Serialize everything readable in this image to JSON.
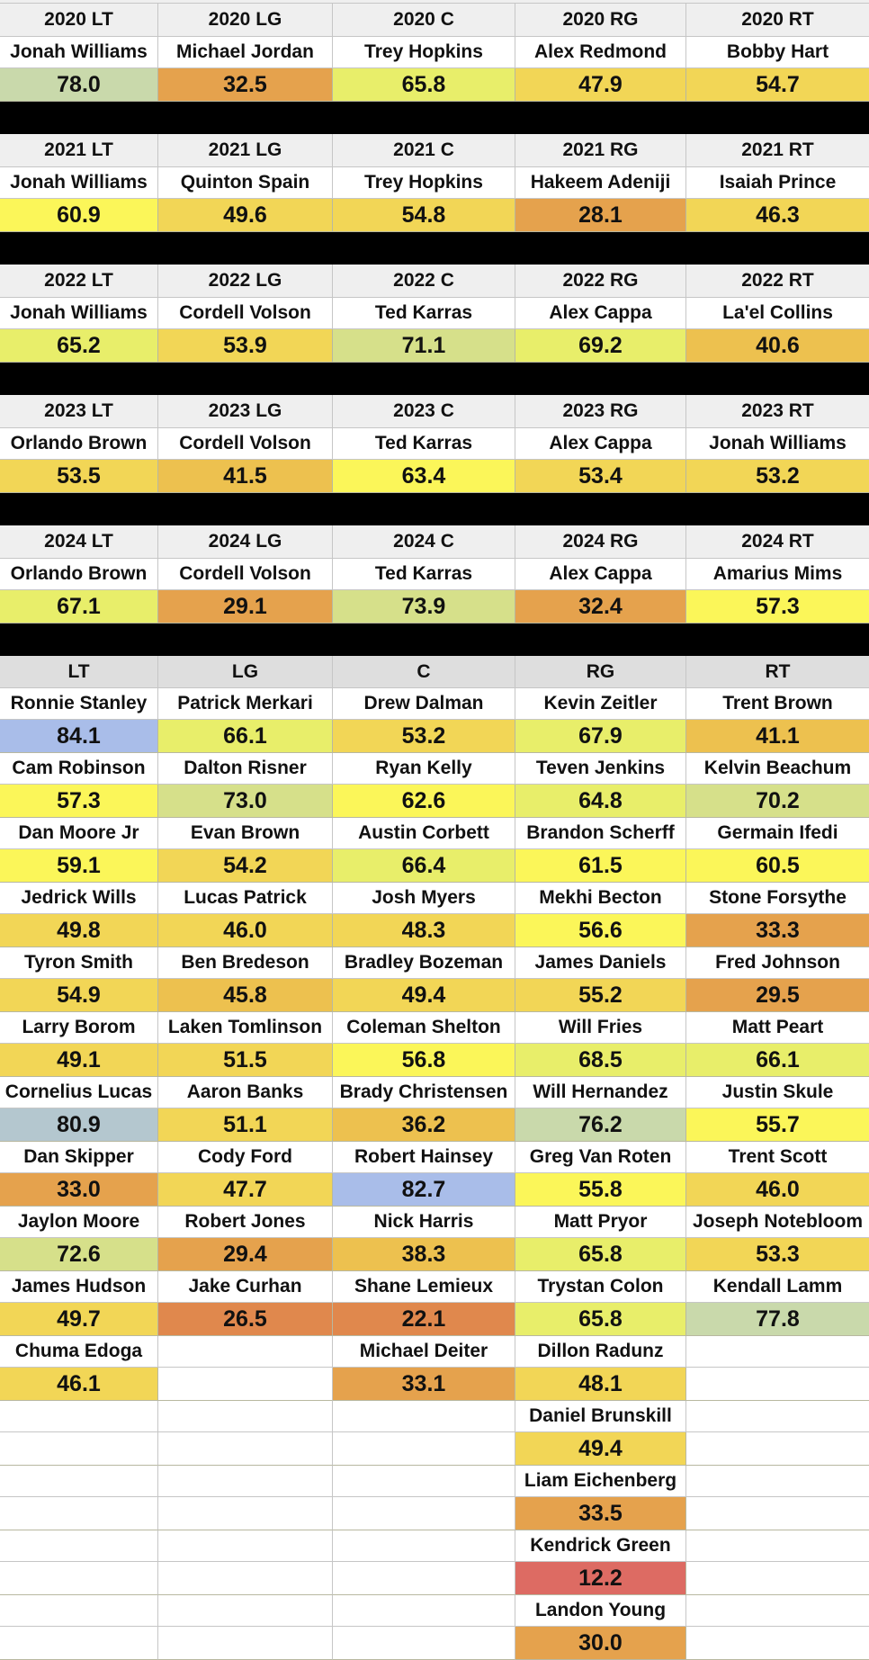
{
  "colors": {
    "blue": "#a9bde9",
    "steel": "#b4c7cf",
    "sage": "#c9d9ab",
    "pale_green": "#d6e08a",
    "lime": "#e8ee6a",
    "yellow": "#fbf659",
    "gold": "#f2d656",
    "amber": "#edc14f",
    "orange": "#e5a24d",
    "dark_orange": "#e0884d",
    "red": "#dd6b63",
    "header_bg": "#efefef",
    "position_header_bg": "#dedede",
    "separator": "#000000"
  },
  "seasons": [
    {
      "headers": [
        "2020 LT",
        "2020 LG",
        "2020 C",
        "2020 RG",
        "2020 RT"
      ],
      "players": [
        "Jonah Williams",
        "Michael Jordan",
        "Trey Hopkins",
        "Alex Redmond",
        "Bobby Hart"
      ],
      "grades": [
        "78.0",
        "32.5",
        "65.8",
        "47.9",
        "54.7"
      ],
      "tones": [
        "sage",
        "orange",
        "lime",
        "gold",
        "gold"
      ]
    },
    {
      "headers": [
        "2021 LT",
        "2021 LG",
        "2021 C",
        "2021 RG",
        "2021 RT"
      ],
      "players": [
        "Jonah Williams",
        "Quinton Spain",
        "Trey Hopkins",
        "Hakeem Adeniji",
        "Isaiah Prince"
      ],
      "grades": [
        "60.9",
        "49.6",
        "54.8",
        "28.1",
        "46.3"
      ],
      "tones": [
        "yellow",
        "gold",
        "gold",
        "orange",
        "gold"
      ]
    },
    {
      "headers": [
        "2022 LT",
        "2022 LG",
        "2022 C",
        "2022 RG",
        "2022 RT"
      ],
      "players": [
        "Jonah Williams",
        "Cordell Volson",
        "Ted Karras",
        "Alex Cappa",
        "La'el Collins"
      ],
      "grades": [
        "65.2",
        "53.9",
        "71.1",
        "69.2",
        "40.6"
      ],
      "tones": [
        "lime",
        "gold",
        "pale_green",
        "lime",
        "amber"
      ]
    },
    {
      "headers": [
        "2023 LT",
        "2023 LG",
        "2023 C",
        "2023 RG",
        "2023 RT"
      ],
      "players": [
        "Orlando Brown",
        "Cordell Volson",
        "Ted Karras",
        "Alex Cappa",
        "Jonah Williams"
      ],
      "grades": [
        "53.5",
        "41.5",
        "63.4",
        "53.4",
        "53.2"
      ],
      "tones": [
        "gold",
        "amber",
        "yellow",
        "gold",
        "gold"
      ]
    },
    {
      "headers": [
        "2024 LT",
        "2024 LG",
        "2024 C",
        "2024 RG",
        "2024 RT"
      ],
      "players": [
        "Orlando Brown",
        "Cordell Volson",
        "Ted Karras",
        "Alex Cappa",
        "Amarius Mims"
      ],
      "grades": [
        "67.1",
        "29.1",
        "73.9",
        "32.4",
        "57.3"
      ],
      "tones": [
        "lime",
        "orange",
        "pale_green",
        "orange",
        "yellow"
      ]
    }
  ],
  "positions": [
    "LT",
    "LG",
    "C",
    "RG",
    "RT"
  ],
  "roster_rows": [
    {
      "players": [
        "Ronnie Stanley",
        "Patrick Merkari",
        "Drew Dalman",
        "Kevin Zeitler",
        "Trent Brown"
      ],
      "grades": [
        "84.1",
        "66.1",
        "53.2",
        "67.9",
        "41.1"
      ],
      "tones": [
        "blue",
        "lime",
        "gold",
        "lime",
        "amber"
      ]
    },
    {
      "players": [
        "Cam Robinson",
        "Dalton Risner",
        "Ryan Kelly",
        "Teven Jenkins",
        "Kelvin Beachum"
      ],
      "grades": [
        "57.3",
        "73.0",
        "62.6",
        "64.8",
        "70.2"
      ],
      "tones": [
        "yellow",
        "pale_green",
        "yellow",
        "lime",
        "pale_green"
      ]
    },
    {
      "players": [
        "Dan Moore Jr",
        "Evan Brown",
        "Austin Corbett",
        "Brandon Scherff",
        "Germain Ifedi"
      ],
      "grades": [
        "59.1",
        "54.2",
        "66.4",
        "61.5",
        "60.5"
      ],
      "tones": [
        "yellow",
        "gold",
        "lime",
        "yellow",
        "yellow"
      ]
    },
    {
      "players": [
        "Jedrick Wills",
        "Lucas Patrick",
        "Josh Myers",
        "Mekhi Becton",
        "Stone Forsythe"
      ],
      "grades": [
        "49.8",
        "46.0",
        "48.3",
        "56.6",
        "33.3"
      ],
      "tones": [
        "gold",
        "gold",
        "gold",
        "yellow",
        "orange"
      ]
    },
    {
      "players": [
        "Tyron Smith",
        "Ben Bredeson",
        "Bradley Bozeman",
        "James Daniels",
        "Fred Johnson"
      ],
      "grades": [
        "54.9",
        "45.8",
        "49.4",
        "55.2",
        "29.5"
      ],
      "tones": [
        "gold",
        "amber",
        "gold",
        "gold",
        "orange"
      ]
    },
    {
      "players": [
        "Larry Borom",
        "Laken Tomlinson",
        "Coleman Shelton",
        "Will Fries",
        "Matt Peart"
      ],
      "grades": [
        "49.1",
        "51.5",
        "56.8",
        "68.5",
        "66.1"
      ],
      "tones": [
        "gold",
        "gold",
        "yellow",
        "lime",
        "lime"
      ]
    },
    {
      "players": [
        "Cornelius Lucas",
        "Aaron Banks",
        "Brady Christensen",
        "Will Hernandez",
        "Justin Skule"
      ],
      "grades": [
        "80.9",
        "51.1",
        "36.2",
        "76.2",
        "55.7"
      ],
      "tones": [
        "steel",
        "gold",
        "amber",
        "sage",
        "yellow"
      ]
    },
    {
      "players": [
        "Dan Skipper",
        "Cody Ford",
        "Robert Hainsey",
        "Greg Van Roten",
        "Trent Scott"
      ],
      "grades": [
        "33.0",
        "47.7",
        "82.7",
        "55.8",
        "46.0"
      ],
      "tones": [
        "orange",
        "gold",
        "blue",
        "yellow",
        "gold"
      ]
    },
    {
      "players": [
        "Jaylon Moore",
        "Robert Jones",
        "Nick Harris",
        "Matt Pryor",
        "Joseph Notebloom"
      ],
      "grades": [
        "72.6",
        "29.4",
        "38.3",
        "65.8",
        "53.3"
      ],
      "tones": [
        "pale_green",
        "orange",
        "amber",
        "lime",
        "gold"
      ]
    },
    {
      "players": [
        "James Hudson",
        "Jake Curhan",
        "Shane Lemieux",
        "Trystan Colon",
        "Kendall Lamm"
      ],
      "grades": [
        "49.7",
        "26.5",
        "22.1",
        "65.8",
        "77.8"
      ],
      "tones": [
        "gold",
        "dark_orange",
        "dark_orange",
        "lime",
        "sage"
      ]
    },
    {
      "players": [
        "Chuma Edoga",
        "",
        "Michael Deiter",
        "Dillon Radunz",
        ""
      ],
      "grades": [
        "46.1",
        "",
        "33.1",
        "48.1",
        ""
      ],
      "tones": [
        "gold",
        "",
        "orange",
        "gold",
        ""
      ]
    },
    {
      "players": [
        "",
        "",
        "",
        "Daniel Brunskill",
        ""
      ],
      "grades": [
        "",
        "",
        "",
        "49.4",
        ""
      ],
      "tones": [
        "",
        "",
        "",
        "gold",
        ""
      ]
    },
    {
      "players": [
        "",
        "",
        "",
        "Liam Eichenberg",
        ""
      ],
      "grades": [
        "",
        "",
        "",
        "33.5",
        ""
      ],
      "tones": [
        "",
        "",
        "",
        "orange",
        ""
      ]
    },
    {
      "players": [
        "",
        "",
        "",
        "Kendrick Green",
        ""
      ],
      "grades": [
        "",
        "",
        "",
        "12.2",
        ""
      ],
      "tones": [
        "",
        "",
        "",
        "red",
        ""
      ]
    },
    {
      "players": [
        "",
        "",
        "",
        "Landon Young",
        ""
      ],
      "grades": [
        "",
        "",
        "",
        "30.0",
        ""
      ],
      "tones": [
        "",
        "",
        "",
        "orange",
        ""
      ]
    }
  ]
}
